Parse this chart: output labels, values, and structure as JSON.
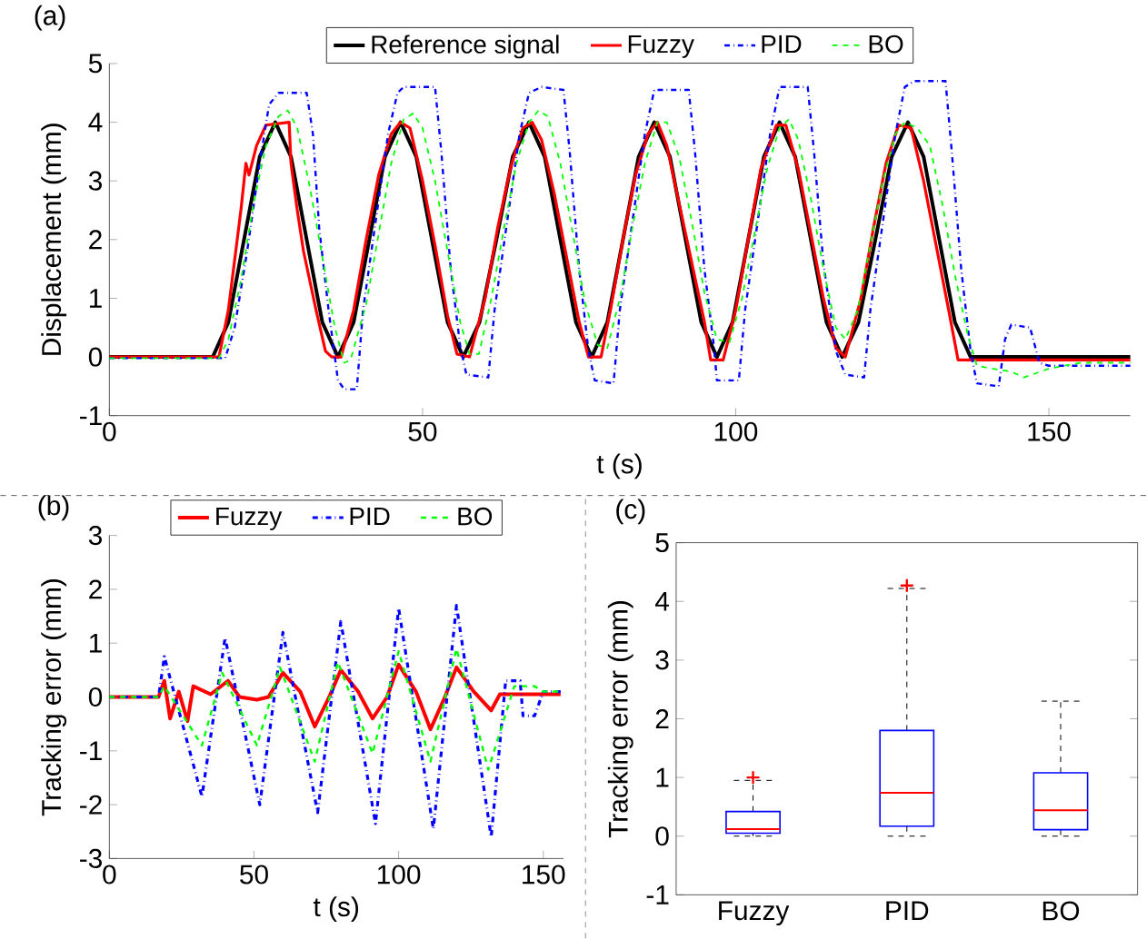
{
  "chart_data": [
    {
      "type": "line",
      "xlabel": "t (s)",
      "ylabel": "Displacement (mm)",
      "annotations": [
        "(a)"
      ],
      "legend": "top",
      "xlim": [
        0,
        163
      ],
      "ylim": [
        -1,
        5
      ],
      "xticks": [
        0,
        50,
        100,
        150
      ],
      "yticks": [
        -1,
        0,
        1,
        2,
        3,
        4,
        5
      ],
      "series": [
        {
          "name": "Reference signal",
          "color": "#000000",
          "line_style": "solid",
          "x": [
            0,
            16.5,
            19,
            21.5,
            24,
            26.5,
            29,
            31.5,
            34,
            36.5,
            39,
            41.5,
            44,
            46.5,
            49,
            51.5,
            54,
            56.5,
            59.1,
            61.8,
            64.4,
            67,
            69.5,
            72,
            74.5,
            77,
            79.5,
            82,
            84.5,
            87,
            89.5,
            92,
            94.5,
            97,
            99.5,
            102,
            104.5,
            107,
            109.5,
            112,
            114.5,
            117,
            119.6,
            122.3,
            124.9,
            127.5,
            130,
            132.5,
            135,
            137.5,
            163
          ],
          "values": [
            0,
            0,
            0.59,
            2,
            3.41,
            4,
            3.41,
            2,
            0.59,
            0,
            0.59,
            2,
            3.41,
            4,
            3.41,
            2,
            0.59,
            0,
            0.59,
            2,
            3.41,
            4,
            3.41,
            2,
            0.59,
            0,
            0.59,
            2,
            3.41,
            4,
            3.41,
            2,
            0.59,
            0,
            0.59,
            2,
            3.41,
            4,
            3.41,
            2,
            0.59,
            0,
            0.59,
            2,
            3.41,
            4,
            3.41,
            2,
            0.59,
            0,
            0
          ]
        },
        {
          "name": "Fuzzy",
          "color": "#ff0000",
          "line_style": "solid",
          "x": [
            0,
            17.5,
            19,
            21,
            21.8,
            22.3,
            23.5,
            25,
            28.7,
            29,
            30,
            31,
            33,
            34.5,
            35.5,
            37,
            39,
            41,
            43,
            45,
            46.5,
            48,
            50,
            52,
            54,
            55.5,
            57.5,
            60,
            62,
            64,
            66,
            67.5,
            69,
            71,
            73,
            75,
            76.5,
            78.5,
            80,
            82,
            84,
            86,
            87.5,
            89,
            91,
            93,
            95,
            96,
            98,
            100,
            102,
            104,
            106.5,
            108,
            110,
            112,
            114,
            116,
            117.5,
            120,
            122,
            124,
            126,
            128,
            130,
            132,
            134,
            135.5,
            163
          ],
          "values": [
            0,
            0,
            0.8,
            2.5,
            3.3,
            3.1,
            3.6,
            3.95,
            4,
            3.3,
            2.5,
            1.8,
            0.8,
            0.1,
            0,
            0,
            0.8,
            2,
            3.1,
            3.8,
            4,
            3.9,
            3,
            1.9,
            0.7,
            0.05,
            0,
            1,
            2.2,
            3.2,
            3.9,
            4,
            3.7,
            2.8,
            1.7,
            0.6,
            0,
            0,
            0.8,
            2,
            3.1,
            3.8,
            4,
            3.6,
            2.6,
            1.6,
            0.6,
            -0.05,
            -0.05,
            0.8,
            2,
            3.2,
            3.95,
            3.95,
            3.2,
            2.1,
            1,
            0.15,
            0,
            1,
            2.2,
            3.3,
            3.95,
            3.9,
            3,
            1.9,
            0.8,
            -0.05,
            -0.05
          ]
        },
        {
          "name": "PID",
          "color": "#0000ff",
          "line_style": "dashdot",
          "x": [
            0,
            18.5,
            20,
            22,
            24,
            25.5,
            27,
            31.5,
            32.5,
            33.5,
            35,
            36.5,
            37.5,
            39.5,
            40.5,
            42.5,
            44.5,
            46,
            47,
            52,
            53,
            54.5,
            56,
            57,
            60.5,
            61.5,
            63.5,
            65.5,
            67,
            69,
            72.5,
            73.5,
            75,
            76.5,
            77.5,
            80.5,
            81.5,
            83.5,
            85.5,
            87,
            92.5,
            93.5,
            95,
            96.5,
            97,
            100.5,
            101.5,
            103.5,
            105.5,
            107,
            111.5,
            112.5,
            114,
            116,
            117.5,
            120.5,
            121.5,
            123.5,
            125.5,
            127,
            128.5,
            133.5,
            134.5,
            136,
            137.5,
            138.5,
            142,
            143,
            144,
            147,
            148.5,
            150,
            163
          ],
          "values": [
            -0.02,
            -0.02,
            0.5,
            1.8,
            3.3,
            4.3,
            4.5,
            4.5,
            3.8,
            2.2,
            0.8,
            -0.4,
            -0.55,
            -0.55,
            0.8,
            2.3,
            3.8,
            4.5,
            4.6,
            4.6,
            3.5,
            1.5,
            0.2,
            -0.3,
            -0.35,
            0.8,
            2.3,
            3.8,
            4.5,
            4.6,
            4.55,
            3.5,
            1.5,
            0.1,
            -0.4,
            -0.45,
            0.8,
            2.3,
            3.8,
            4.55,
            4.55,
            3.5,
            1.5,
            0.2,
            -0.4,
            -0.4,
            0.8,
            2.3,
            3.8,
            4.6,
            4.6,
            3.5,
            1.6,
            0.1,
            -0.3,
            -0.35,
            0.8,
            2.3,
            3.8,
            4.6,
            4.7,
            4.7,
            3.5,
            1.5,
            0.1,
            -0.45,
            -0.5,
            0.3,
            0.55,
            0.5,
            -0.1,
            -0.15,
            -0.15
          ]
        },
        {
          "name": "BO",
          "color": "#00ff00",
          "line_style": "dashed",
          "x": [
            0,
            17.5,
            19,
            21,
            23,
            25,
            27,
            28.5,
            30,
            32,
            34,
            36,
            37.5,
            38.5,
            41,
            43,
            45,
            47,
            48.5,
            50,
            52,
            54,
            56,
            57.5,
            59,
            61,
            63,
            65,
            67,
            68.5,
            70,
            72,
            74,
            76,
            78,
            79.5,
            81.5,
            83.5,
            85.5,
            87.5,
            89,
            91,
            93,
            95,
            97,
            99,
            101,
            103,
            105,
            107,
            108.5,
            110,
            112,
            114,
            116,
            117.5,
            119.5,
            121.5,
            123.5,
            125.5,
            127,
            129,
            131,
            133,
            135,
            137,
            138.5,
            141,
            144,
            146,
            150,
            155,
            163
          ],
          "values": [
            -0.02,
            -0.02,
            0.3,
            1.3,
            2.6,
            3.6,
            4.1,
            4.2,
            3.9,
            2.9,
            1.7,
            0.5,
            -0.1,
            -0.05,
            0.9,
            2.1,
            3.3,
            4.05,
            4.15,
            3.9,
            3,
            1.8,
            0.6,
            0.05,
            0.05,
            1,
            2.2,
            3.3,
            4,
            4.2,
            4.1,
            3.3,
            2.1,
            0.9,
            0.2,
            0.15,
            1,
            2.2,
            3.3,
            4,
            4,
            3.4,
            2.3,
            1.1,
            0.3,
            0.25,
            1,
            2.1,
            3.2,
            3.9,
            4.05,
            3.7,
            2.7,
            1.5,
            0.5,
            0.3,
            0.8,
            1.9,
            3,
            3.8,
            4,
            3.9,
            3.6,
            2.6,
            1.4,
            0.4,
            -0.15,
            -0.2,
            -0.25,
            -0.35,
            -0.2,
            -0.1,
            -0.1
          ]
        }
      ]
    },
    {
      "type": "line",
      "xlabel": "t (s)",
      "ylabel": "Tracking error (mm)",
      "annotations": [
        "(b)"
      ],
      "legend": "top",
      "xlim": [
        0,
        157
      ],
      "ylim": [
        -3,
        3
      ],
      "xticks": [
        0,
        50,
        100,
        150
      ],
      "yticks": [
        -3,
        -2,
        -1,
        0,
        1,
        2,
        3
      ],
      "series": [
        {
          "name": "Fuzzy",
          "color": "#ff0000",
          "line_style": "solid",
          "x": [
            0,
            17,
            19,
            21,
            24,
            27,
            29,
            35,
            41,
            45,
            51,
            55,
            60,
            66,
            71,
            76,
            80,
            86,
            91,
            96,
            100,
            106,
            111,
            116,
            120,
            126,
            132,
            135,
            156
          ],
          "values": [
            0,
            0,
            0.3,
            -0.4,
            0.1,
            -0.45,
            0.2,
            0.05,
            0.3,
            0,
            -0.05,
            0,
            0.45,
            0.1,
            -0.55,
            0,
            0.5,
            0.1,
            -0.4,
            0,
            0.6,
            0.1,
            -0.6,
            0,
            0.55,
            0.1,
            -0.25,
            0.05,
            0.05
          ]
        },
        {
          "name": "PID",
          "color": "#0000ff",
          "line_style": "dashdot",
          "x": [
            0,
            17,
            19,
            32,
            40,
            52,
            60,
            72,
            80,
            92,
            100,
            112,
            120,
            132,
            137,
            142,
            143,
            147,
            150,
            156
          ],
          "values": [
            0,
            0,
            0.75,
            -1.85,
            1.1,
            -2,
            1.2,
            -2.15,
            1.4,
            -2.35,
            1.65,
            -2.45,
            1.7,
            -2.6,
            0.3,
            0.3,
            -0.35,
            -0.35,
            0.1,
            0.1
          ]
        },
        {
          "name": "BO",
          "color": "#00ff00",
          "line_style": "dashed",
          "x": [
            0,
            17,
            19,
            32,
            39,
            51,
            59,
            71,
            79,
            91,
            100,
            111,
            120,
            131,
            140,
            147,
            150,
            156
          ],
          "values": [
            0,
            0,
            0.2,
            -0.9,
            0.45,
            -0.9,
            0.55,
            -1.2,
            0.65,
            -1.05,
            0.85,
            -1.2,
            0.9,
            -1.35,
            0.2,
            0.2,
            0.1,
            0.1
          ]
        }
      ]
    },
    {
      "type": "box",
      "ylabel": "Tracking error (mm)",
      "annotations": [
        "(c)"
      ],
      "categories": [
        "Fuzzy",
        "PID",
        "BO"
      ],
      "color": "#0000ff",
      "ylim": [
        -1,
        5
      ],
      "yticks": [
        -1,
        0,
        1,
        2,
        3,
        4,
        5
      ],
      "boxes": [
        {
          "low": 0,
          "q1": 0.05,
          "median": 0.12,
          "q3": 0.42,
          "high": 0.95,
          "outliers": [
            1.0
          ]
        },
        {
          "low": 0,
          "q1": 0.17,
          "median": 0.74,
          "q3": 1.8,
          "high": 4.22,
          "outliers": [
            4.27
          ]
        },
        {
          "low": 0,
          "q1": 0.11,
          "median": 0.44,
          "q3": 1.08,
          "high": 2.3
        }
      ]
    }
  ]
}
